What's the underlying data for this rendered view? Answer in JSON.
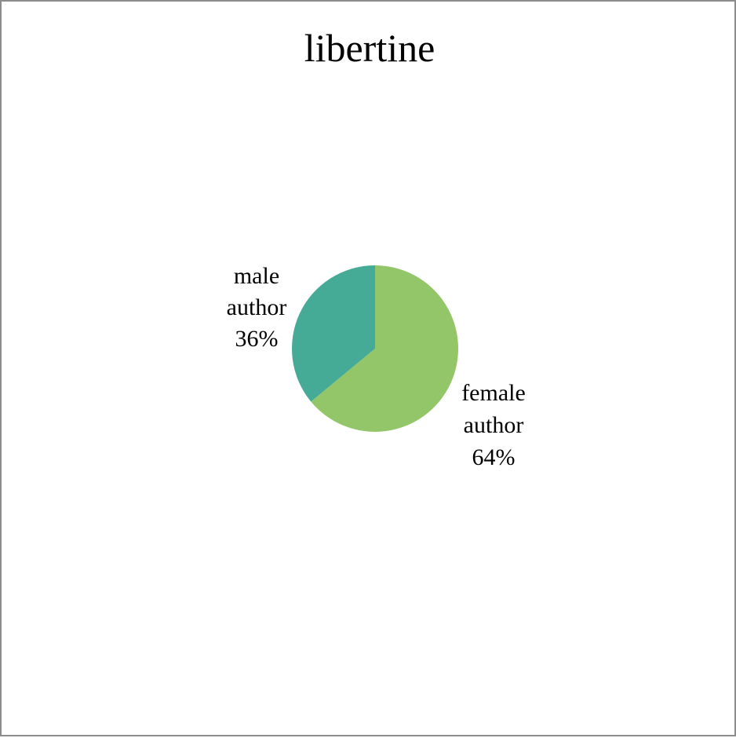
{
  "chart_data": {
    "type": "pie",
    "title": "libertine",
    "categories": [
      "female author",
      "male author"
    ],
    "values": [
      64,
      36
    ],
    "unit": "%",
    "colors": [
      "#93c569",
      "#45ab97"
    ],
    "data_labels": [
      {
        "name_lines": [
          "female",
          "author"
        ],
        "value_text": "64%"
      },
      {
        "name_lines": [
          "male",
          "author"
        ],
        "value_text": "36%"
      }
    ],
    "legend": "none",
    "start_angle_deg": 0,
    "direction": "clockwise"
  }
}
